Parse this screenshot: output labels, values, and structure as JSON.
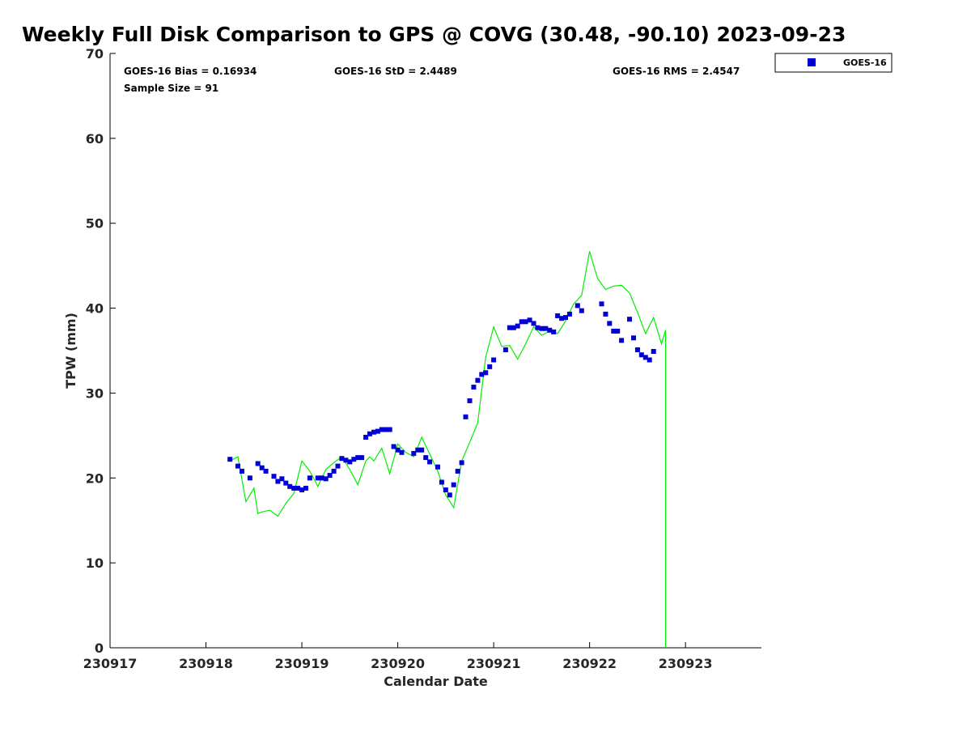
{
  "title": "Weekly Full Disk Comparison to GPS @ COVG (30.48, -90.10) 2023-09-23",
  "stats": {
    "bias": "GOES-16 Bias = 0.16934",
    "std": "GOES-16 StD = 2.4489",
    "rms": "GOES-16 RMS = 2.4547",
    "sample": "Sample Size = 91"
  },
  "legend": {
    "label": "GOES-16",
    "position": "top-right-outside"
  },
  "colors": {
    "goes": "#0000d6",
    "gps": "#00ee00",
    "axis": "#000000"
  },
  "chart_data": {
    "type": "scatter",
    "xlabel": "Calendar Date",
    "ylabel": "TPW (mm)",
    "x_ticks": [
      "230917",
      "230918",
      "230919",
      "230920",
      "230921",
      "230922",
      "230923"
    ],
    "y_ticks": [
      "0",
      "10",
      "20",
      "30",
      "40",
      "50",
      "60",
      "70"
    ],
    "xlim": [
      "2023-09-17 00:00",
      "2023-09-23 19:00"
    ],
    "ylim": [
      0,
      70
    ],
    "grid": false,
    "series": [
      {
        "name": "GOES-16",
        "kind": "markers",
        "x": [
          "2023-09-18 06:00",
          "2023-09-18 08:00",
          "2023-09-18 09:00",
          "2023-09-18 11:00",
          "2023-09-18 13:00",
          "2023-09-18 14:00",
          "2023-09-18 15:00",
          "2023-09-18 17:00",
          "2023-09-18 18:00",
          "2023-09-18 19:00",
          "2023-09-18 20:00",
          "2023-09-18 21:00",
          "2023-09-18 22:00",
          "2023-09-18 23:00",
          "2023-09-19 00:00",
          "2023-09-19 01:00",
          "2023-09-19 02:00",
          "2023-09-19 04:00",
          "2023-09-19 05:00",
          "2023-09-19 06:00",
          "2023-09-19 07:00",
          "2023-09-19 08:00",
          "2023-09-19 09:00",
          "2023-09-19 10:00",
          "2023-09-19 11:00",
          "2023-09-19 12:00",
          "2023-09-19 13:00",
          "2023-09-19 14:00",
          "2023-09-19 15:00",
          "2023-09-19 16:00",
          "2023-09-19 17:00",
          "2023-09-19 18:00",
          "2023-09-19 19:00",
          "2023-09-19 20:00",
          "2023-09-19 21:00",
          "2023-09-19 22:00",
          "2023-09-19 23:00",
          "2023-09-20 00:00",
          "2023-09-20 01:00",
          "2023-09-20 04:00",
          "2023-09-20 05:00",
          "2023-09-20 06:00",
          "2023-09-20 07:00",
          "2023-09-20 08:00",
          "2023-09-20 10:00",
          "2023-09-20 11:00",
          "2023-09-20 12:00",
          "2023-09-20 13:00",
          "2023-09-20 14:00",
          "2023-09-20 15:00",
          "2023-09-20 16:00",
          "2023-09-20 17:00",
          "2023-09-20 18:00",
          "2023-09-20 19:00",
          "2023-09-20 20:00",
          "2023-09-20 21:00",
          "2023-09-20 22:00",
          "2023-09-20 23:00",
          "2023-09-21 00:00",
          "2023-09-21 03:00",
          "2023-09-21 04:00",
          "2023-09-21 05:00",
          "2023-09-21 06:00",
          "2023-09-21 07:00",
          "2023-09-21 08:00",
          "2023-09-21 09:00",
          "2023-09-21 10:00",
          "2023-09-21 11:00",
          "2023-09-21 12:00",
          "2023-09-21 13:00",
          "2023-09-21 14:00",
          "2023-09-21 15:00",
          "2023-09-21 16:00",
          "2023-09-21 17:00",
          "2023-09-21 18:00",
          "2023-09-21 19:00",
          "2023-09-21 21:00",
          "2023-09-21 22:00",
          "2023-09-22 03:00",
          "2023-09-22 04:00",
          "2023-09-22 05:00",
          "2023-09-22 06:00",
          "2023-09-22 07:00",
          "2023-09-22 08:00",
          "2023-09-22 10:00",
          "2023-09-22 11:00",
          "2023-09-22 12:00",
          "2023-09-22 13:00",
          "2023-09-22 14:00",
          "2023-09-22 15:00",
          "2023-09-22 16:00"
        ],
        "y": [
          22.2,
          21.4,
          20.8,
          20.0,
          21.7,
          21.2,
          20.8,
          20.2,
          19.6,
          19.9,
          19.4,
          19.0,
          18.8,
          18.8,
          18.6,
          18.8,
          20.0,
          20.0,
          20.0,
          19.9,
          20.3,
          20.8,
          21.4,
          22.3,
          22.1,
          21.9,
          22.2,
          22.4,
          22.4,
          24.8,
          25.2,
          25.4,
          25.5,
          25.7,
          25.7,
          25.7,
          23.7,
          23.3,
          23.0,
          22.9,
          23.3,
          23.3,
          22.4,
          21.9,
          21.3,
          19.5,
          18.6,
          18.0,
          19.2,
          20.8,
          21.8,
          27.2,
          29.1,
          30.7,
          31.5,
          32.2,
          32.4,
          33.1,
          33.9,
          35.1,
          37.7,
          37.7,
          37.9,
          38.4,
          38.4,
          38.6,
          38.2,
          37.7,
          37.6,
          37.6,
          37.4,
          37.2,
          39.1,
          38.8,
          38.9,
          39.3,
          40.3,
          39.7,
          40.5,
          39.3,
          38.2,
          37.3,
          37.3,
          36.2,
          38.7,
          36.5,
          35.1,
          34.5,
          34.2,
          33.9,
          34.9
        ]
      },
      {
        "name": "GPS",
        "kind": "line",
        "x": [
          "2023-09-18 06:00",
          "2023-09-18 08:00",
          "2023-09-18 10:00",
          "2023-09-18 12:00",
          "2023-09-18 13:00",
          "2023-09-18 14:00",
          "2023-09-18 16:00",
          "2023-09-18 18:00",
          "2023-09-18 20:00",
          "2023-09-18 22:00",
          "2023-09-19 00:00",
          "2023-09-19 02:00",
          "2023-09-19 04:00",
          "2023-09-19 06:00",
          "2023-09-19 08:00",
          "2023-09-19 10:00",
          "2023-09-19 12:00",
          "2023-09-19 14:00",
          "2023-09-19 16:00",
          "2023-09-19 17:00",
          "2023-09-19 18:00",
          "2023-09-19 20:00",
          "2023-09-19 22:00",
          "2023-09-20 00:00",
          "2023-09-20 02:00",
          "2023-09-20 04:00",
          "2023-09-20 06:00",
          "2023-09-20 08:00",
          "2023-09-20 10:00",
          "2023-09-20 12:00",
          "2023-09-20 14:00",
          "2023-09-20 16:00",
          "2023-09-20 18:00",
          "2023-09-20 20:00",
          "2023-09-20 22:00",
          "2023-09-21 00:00",
          "2023-09-21 02:00",
          "2023-09-21 04:00",
          "2023-09-21 06:00",
          "2023-09-21 08:00",
          "2023-09-21 10:00",
          "2023-09-21 12:00",
          "2023-09-21 14:00",
          "2023-09-21 16:00",
          "2023-09-21 18:00",
          "2023-09-21 20:00",
          "2023-09-21 22:00",
          "2023-09-22 00:00",
          "2023-09-22 02:00",
          "2023-09-22 04:00",
          "2023-09-22 06:00",
          "2023-09-22 08:00",
          "2023-09-22 10:00",
          "2023-09-22 12:00",
          "2023-09-22 14:00",
          "2023-09-22 16:00",
          "2023-09-22 18:00",
          "2023-09-22 19:00",
          "2023-09-22 19:00"
        ],
        "y": [
          22.0,
          22.5,
          17.2,
          18.8,
          15.8,
          16.0,
          16.2,
          15.5,
          17.0,
          18.2,
          22.0,
          20.8,
          19.0,
          21.0,
          21.8,
          22.5,
          21.0,
          19.2,
          22.0,
          22.5,
          22.0,
          23.5,
          20.5,
          24.0,
          23.0,
          22.5,
          24.8,
          22.8,
          20.8,
          18.0,
          16.5,
          22.0,
          24.2,
          26.5,
          34.2,
          37.8,
          35.5,
          35.6,
          34.0,
          35.8,
          37.8,
          36.8,
          37.3,
          37.0,
          38.5,
          40.5,
          41.5,
          46.7,
          43.5,
          42.2,
          42.6,
          42.7,
          41.8,
          39.5,
          37.0,
          38.9,
          35.8,
          37.4,
          0.0
        ]
      }
    ]
  }
}
